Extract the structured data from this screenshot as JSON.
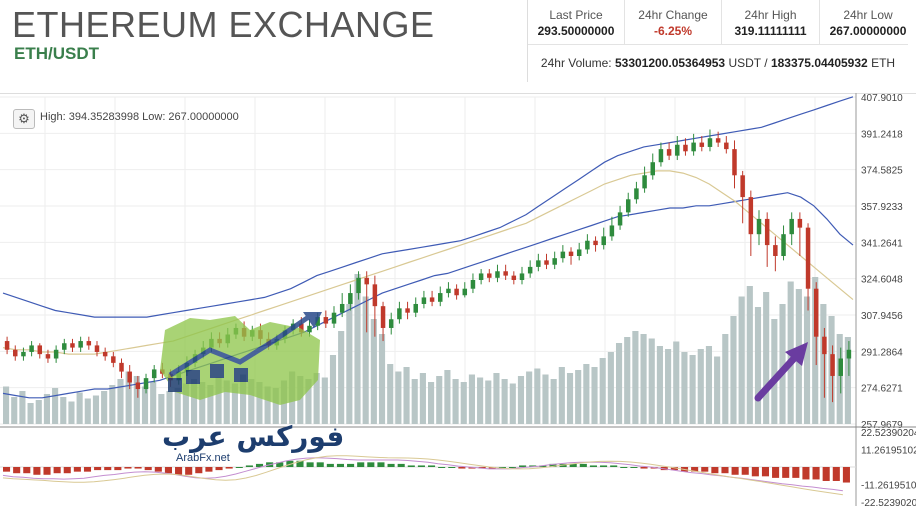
{
  "header": {
    "title": "ETHEREUM EXCHANGE",
    "pair": "ETH/USDT"
  },
  "stats": {
    "last_price_label": "Last Price",
    "last_price": "293.50000000",
    "change_label": "24hr Change",
    "change": "-6.25%",
    "high_label": "24hr High",
    "high": "319.11111111",
    "low_label": "24hr Low",
    "low": "267.00000000",
    "volume_label": "24hr Volume:",
    "volume_usdt": "53301200.05364953",
    "volume_usdt_unit": "USDT",
    "volume_sep": "/",
    "volume_eth": "183375.04405932",
    "volume_eth_unit": "ETH"
  },
  "chart_info": {
    "gear_icon": "gear-icon",
    "high_low_text": "High: 394.35283998  Low: 267.00000000"
  },
  "watermark": {
    "arabic": "فوركس عرب",
    "site": "ArabFx.net"
  },
  "colors": {
    "up": "#2e8b3d",
    "down": "#c0392b",
    "volume": "#b8c6c6",
    "bollinger": "#3f5bb5",
    "ma": "#d9c994",
    "arrow": "#6a3ca0",
    "macd_line": "#c48ed0",
    "signal_line": "#d9c994"
  },
  "chart_data": [
    {
      "type": "candlestick",
      "y_ticks": [
        "407.9010",
        "391.2418",
        "374.5825",
        "357.9233",
        "341.2641",
        "324.6048",
        "307.9456",
        "291.2864",
        "274.6271",
        "257.9679"
      ],
      "ylim": [
        257.9679,
        407.901
      ],
      "x_labels": [],
      "candles": [
        [
          296,
          292,
          298,
          290
        ],
        [
          292,
          289,
          294,
          287
        ],
        [
          289,
          291,
          293,
          287
        ],
        [
          291,
          294,
          296,
          289
        ],
        [
          294,
          290,
          295,
          288
        ],
        [
          290,
          288,
          292,
          286
        ],
        [
          288,
          292,
          294,
          286
        ],
        [
          292,
          295,
          297,
          290
        ],
        [
          295,
          293,
          297,
          291
        ],
        [
          293,
          296,
          298,
          291
        ],
        [
          296,
          294,
          298,
          292
        ],
        [
          294,
          291,
          296,
          289
        ],
        [
          291,
          289,
          293,
          287
        ],
        [
          289,
          286,
          291,
          284
        ],
        [
          286,
          282,
          288,
          279
        ],
        [
          282,
          277,
          285,
          274
        ],
        [
          277,
          274,
          280,
          270
        ],
        [
          274,
          279,
          281,
          272
        ],
        [
          279,
          283,
          285,
          277
        ],
        [
          283,
          281,
          286,
          279
        ],
        [
          281,
          278,
          283,
          275
        ],
        [
          278,
          282,
          285,
          276
        ],
        [
          282,
          286,
          289,
          280
        ],
        [
          286,
          290,
          292,
          284
        ],
        [
          290,
          293,
          296,
          288
        ],
        [
          293,
          297,
          300,
          291
        ],
        [
          297,
          295,
          300,
          293
        ],
        [
          295,
          299,
          302,
          293
        ],
        [
          299,
          302,
          304,
          297
        ],
        [
          302,
          298,
          305,
          296
        ],
        [
          298,
          301,
          303,
          296
        ],
        [
          301,
          297,
          304,
          294
        ],
        [
          297,
          294,
          300,
          292
        ],
        [
          294,
          297,
          299,
          292
        ],
        [
          297,
          301,
          303,
          295
        ],
        [
          301,
          304,
          306,
          299
        ],
        [
          304,
          300,
          307,
          298
        ],
        [
          300,
          303,
          306,
          298
        ],
        [
          303,
          307,
          309,
          301
        ],
        [
          307,
          304,
          310,
          302
        ],
        [
          304,
          309,
          312,
          302
        ],
        [
          309,
          313,
          318,
          307
        ],
        [
          313,
          318,
          322,
          310
        ],
        [
          318,
          325,
          328,
          315
        ],
        [
          325,
          322,
          328,
          300
        ],
        [
          322,
          312,
          326,
          298
        ],
        [
          312,
          302,
          314,
          296
        ],
        [
          302,
          306,
          309,
          299
        ],
        [
          306,
          311,
          314,
          304
        ],
        [
          311,
          309,
          314,
          306
        ],
        [
          309,
          313,
          316,
          307
        ],
        [
          313,
          316,
          319,
          311
        ],
        [
          316,
          314,
          319,
          312
        ],
        [
          314,
          318,
          321,
          312
        ],
        [
          318,
          320,
          323,
          316
        ],
        [
          320,
          317,
          322,
          315
        ],
        [
          317,
          320,
          323,
          316
        ],
        [
          320,
          324,
          327,
          318
        ],
        [
          324,
          327,
          329,
          322
        ],
        [
          327,
          325,
          329,
          323
        ],
        [
          325,
          328,
          331,
          323
        ],
        [
          328,
          326,
          331,
          324
        ],
        [
          326,
          324,
          328,
          322
        ],
        [
          324,
          327,
          330,
          322
        ],
        [
          327,
          330,
          333,
          325
        ],
        [
          330,
          333,
          336,
          328
        ],
        [
          333,
          331,
          336,
          329
        ],
        [
          331,
          334,
          337,
          329
        ],
        [
          334,
          337,
          340,
          332
        ],
        [
          337,
          335,
          339,
          331
        ],
        [
          335,
          338,
          341,
          333
        ],
        [
          338,
          342,
          345,
          336
        ],
        [
          342,
          340,
          344,
          337
        ],
        [
          340,
          344,
          348,
          338
        ],
        [
          344,
          349,
          353,
          342
        ],
        [
          349,
          355,
          358,
          347
        ],
        [
          355,
          361,
          364,
          353
        ],
        [
          361,
          366,
          369,
          359
        ],
        [
          366,
          372,
          376,
          364
        ],
        [
          372,
          378,
          382,
          370
        ],
        [
          378,
          384,
          387,
          376
        ],
        [
          384,
          381,
          387,
          379
        ],
        [
          381,
          386,
          390,
          379
        ],
        [
          386,
          383,
          389,
          381
        ],
        [
          383,
          387,
          391,
          381
        ],
        [
          387,
          385,
          390,
          383
        ],
        [
          385,
          389,
          393,
          383
        ],
        [
          389,
          387,
          392,
          385
        ],
        [
          387,
          384,
          390,
          382
        ],
        [
          384,
          372,
          388,
          366
        ],
        [
          372,
          362,
          374,
          350
        ],
        [
          362,
          345,
          365,
          335
        ],
        [
          345,
          352,
          356,
          340
        ],
        [
          352,
          340,
          355,
          330
        ],
        [
          340,
          335,
          344,
          328
        ],
        [
          335,
          345,
          349,
          333
        ],
        [
          345,
          352,
          355,
          340
        ],
        [
          352,
          348,
          355,
          335
        ],
        [
          348,
          320,
          350,
          310
        ],
        [
          320,
          298,
          323,
          285
        ],
        [
          298,
          290,
          302,
          270
        ],
        [
          290,
          280,
          294,
          268
        ],
        [
          280,
          288,
          293,
          272
        ],
        [
          288,
          292,
          296,
          280
        ]
      ],
      "volumes": [
        25,
        18,
        22,
        14,
        16,
        20,
        24,
        18,
        15,
        21,
        17,
        19,
        22,
        26,
        30,
        35,
        32,
        25,
        28,
        20,
        22,
        24,
        27,
        30,
        28,
        26,
        31,
        29,
        27,
        33,
        30,
        28,
        25,
        24,
        29,
        35,
        32,
        30,
        34,
        31,
        46,
        62,
        80,
        100,
        85,
        70,
        60,
        40,
        35,
        38,
        30,
        34,
        28,
        32,
        36,
        30,
        28,
        33,
        31,
        29,
        34,
        30,
        27,
        32,
        35,
        37,
        33,
        30,
        38,
        34,
        36,
        40,
        38,
        44,
        48,
        54,
        58,
        62,
        60,
        57,
        52,
        50,
        55,
        48,
        46,
        50,
        52,
        45,
        60,
        72,
        85,
        92,
        78,
        88,
        70,
        80,
        95,
        90,
        85,
        98,
        80,
        72,
        60,
        58
      ],
      "bollinger_upper": [
        318,
        316,
        314,
        312,
        310,
        309,
        308,
        307,
        307,
        307,
        307,
        307,
        308,
        309,
        310,
        311,
        312,
        313,
        314,
        315,
        316,
        318,
        320,
        323,
        326,
        328,
        330,
        332,
        334,
        336,
        337,
        338,
        339,
        340,
        341,
        342,
        344,
        346,
        348,
        351,
        354,
        358,
        362,
        366,
        370,
        374,
        378,
        381,
        383,
        385,
        386,
        387,
        388,
        389,
        390,
        391,
        392,
        393,
        394,
        396,
        398,
        400,
        402,
        404,
        406,
        408
      ],
      "bollinger_lower": [
        272,
        271,
        270,
        270,
        271,
        272,
        273,
        274,
        274,
        275,
        276,
        277,
        278,
        280,
        282,
        284,
        286,
        288,
        290,
        292,
        294,
        296,
        298,
        300,
        303,
        306,
        309,
        312,
        315,
        318,
        320,
        322,
        324,
        326,
        327,
        329,
        331,
        333,
        335,
        337,
        339,
        341,
        343,
        345,
        347,
        349,
        351,
        353,
        354,
        355,
        356,
        357,
        357,
        358,
        358,
        359,
        360,
        361,
        362,
        363,
        364,
        362,
        358,
        352,
        345,
        340
      ],
      "ma": [
        293,
        292,
        292,
        291,
        291,
        290,
        290,
        290,
        291,
        292,
        293,
        294,
        295,
        296,
        298,
        300,
        302,
        304,
        306,
        308,
        310,
        312,
        314,
        316,
        318,
        320,
        322,
        324,
        326,
        328,
        330,
        332,
        334,
        336,
        338,
        340,
        342,
        344,
        346,
        348,
        350,
        353,
        356,
        359,
        362,
        365,
        368,
        370,
        372,
        373,
        374,
        374,
        373,
        371,
        368,
        364,
        360,
        355,
        350,
        345,
        340,
        335,
        330,
        325,
        320,
        315
      ]
    },
    {
      "type": "macd",
      "y_ticks": [
        "22.52390204",
        "11.26195102",
        "-11.26195102",
        "-22.52390204"
      ],
      "ylim": [
        -22.52390204,
        22.52390204
      ],
      "histogram": [
        -3,
        -4,
        -4,
        -5,
        -5,
        -4,
        -4,
        -3,
        -3,
        -2,
        -2,
        -2,
        -1,
        -1,
        -2,
        -3,
        -4,
        -5,
        -5,
        -4,
        -3,
        -2,
        -1,
        0,
        1,
        2,
        3,
        3,
        4,
        4,
        3,
        3,
        2,
        2,
        2,
        3,
        3,
        3,
        2,
        2,
        1,
        1,
        1,
        0,
        0,
        -1,
        -1,
        -1,
        -1,
        0,
        0,
        1,
        1,
        1,
        2,
        2,
        2,
        2,
        1,
        1,
        1,
        0,
        0,
        -1,
        -1,
        -2,
        -2,
        -3,
        -3,
        -3,
        -4,
        -4,
        -5,
        -5,
        -6,
        -6,
        -7,
        -7,
        -7,
        -8,
        -8,
        -9,
        -9,
        -10
      ]
    }
  ]
}
